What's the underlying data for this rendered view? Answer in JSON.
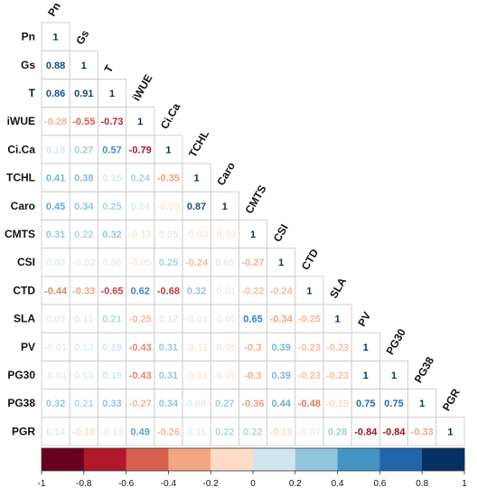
{
  "chart_data": {
    "type": "heatmap",
    "variables": [
      "Pn",
      "Gs",
      "T",
      "iWUE",
      "Ci.Ca",
      "TCHL",
      "Caro",
      "CMTS",
      "CSI",
      "CTD",
      "SLA",
      "PV",
      "PG30",
      "PG38",
      "PGR"
    ],
    "matrix": [
      [
        "1"
      ],
      [
        "0.88",
        "1"
      ],
      [
        "0.86",
        "0.91",
        "1"
      ],
      [
        "-0.28",
        "-0.55",
        "-0.73",
        "1"
      ],
      [
        "0.18",
        "0.27",
        "0.57",
        "-0.79",
        "1"
      ],
      [
        "0.41",
        "0.38",
        "0.15",
        "0.24",
        "-0.35",
        "1"
      ],
      [
        "0.45",
        "0.34",
        "0.25",
        "0.14",
        "-0.09",
        "0.87",
        "1"
      ],
      [
        "0.31",
        "0.22",
        "0.32",
        "-0.13",
        "0.05",
        "-0.03",
        "-0.09",
        "1"
      ],
      [
        "0.08",
        "-0.02",
        "0.06",
        "-0.05",
        "0.25",
        "-0.24",
        "0.05",
        "-0.27",
        "1"
      ],
      [
        "-0.44",
        "-0.33",
        "-0.65",
        "0.62",
        "-0.68",
        "0.32",
        "-0.01",
        "-0.22",
        "-0.24",
        "1"
      ],
      [
        "0.09",
        "0.11",
        "0.21",
        "-0.25",
        "0.12",
        "-0.01",
        "-0.05",
        "0.65",
        "-0.34",
        "-0.25",
        "1"
      ],
      [
        "-0.01",
        "0.13",
        "0.19",
        "-0.43",
        "0.31",
        "-0.11",
        "-0.05",
        "-0.3",
        "0.39",
        "-0.23",
        "-0.23",
        "1"
      ],
      [
        "-0.01",
        "0.13",
        "0.19",
        "-0.43",
        "0.31",
        "-0.11",
        "-0.05",
        "-0.3",
        "0.39",
        "-0.23",
        "-0.23",
        "1",
        "1"
      ],
      [
        "0.32",
        "0.21",
        "0.33",
        "-0.27",
        "0.34",
        "0.08",
        "0.27",
        "-0.36",
        "0.44",
        "-0.48",
        "-0.19",
        "0.75",
        "0.75",
        "1"
      ],
      [
        "0.14",
        "-0.18",
        "-0.13",
        "0.49",
        "-0.26",
        "0.11",
        "0.22",
        "0.22",
        "-0.19",
        "-0.07",
        "0.28",
        "-0.84",
        "-0.84",
        "-0.33",
        "1"
      ]
    ],
    "colorbar": {
      "range": [
        -1,
        1
      ],
      "ticks": [
        "-1",
        "-0.8",
        "-0.6",
        "-0.4",
        "-0.2",
        "0",
        "0.2",
        "0.4",
        "0.6",
        "0.8",
        "1"
      ],
      "colors": [
        "#67001f",
        "#b2182b",
        "#d6604d",
        "#f4a582",
        "#fddbc7",
        "#d1e5f0",
        "#92c5de",
        "#4393c3",
        "#2166ac",
        "#053061"
      ]
    },
    "grid": true,
    "legend": "bottom"
  }
}
